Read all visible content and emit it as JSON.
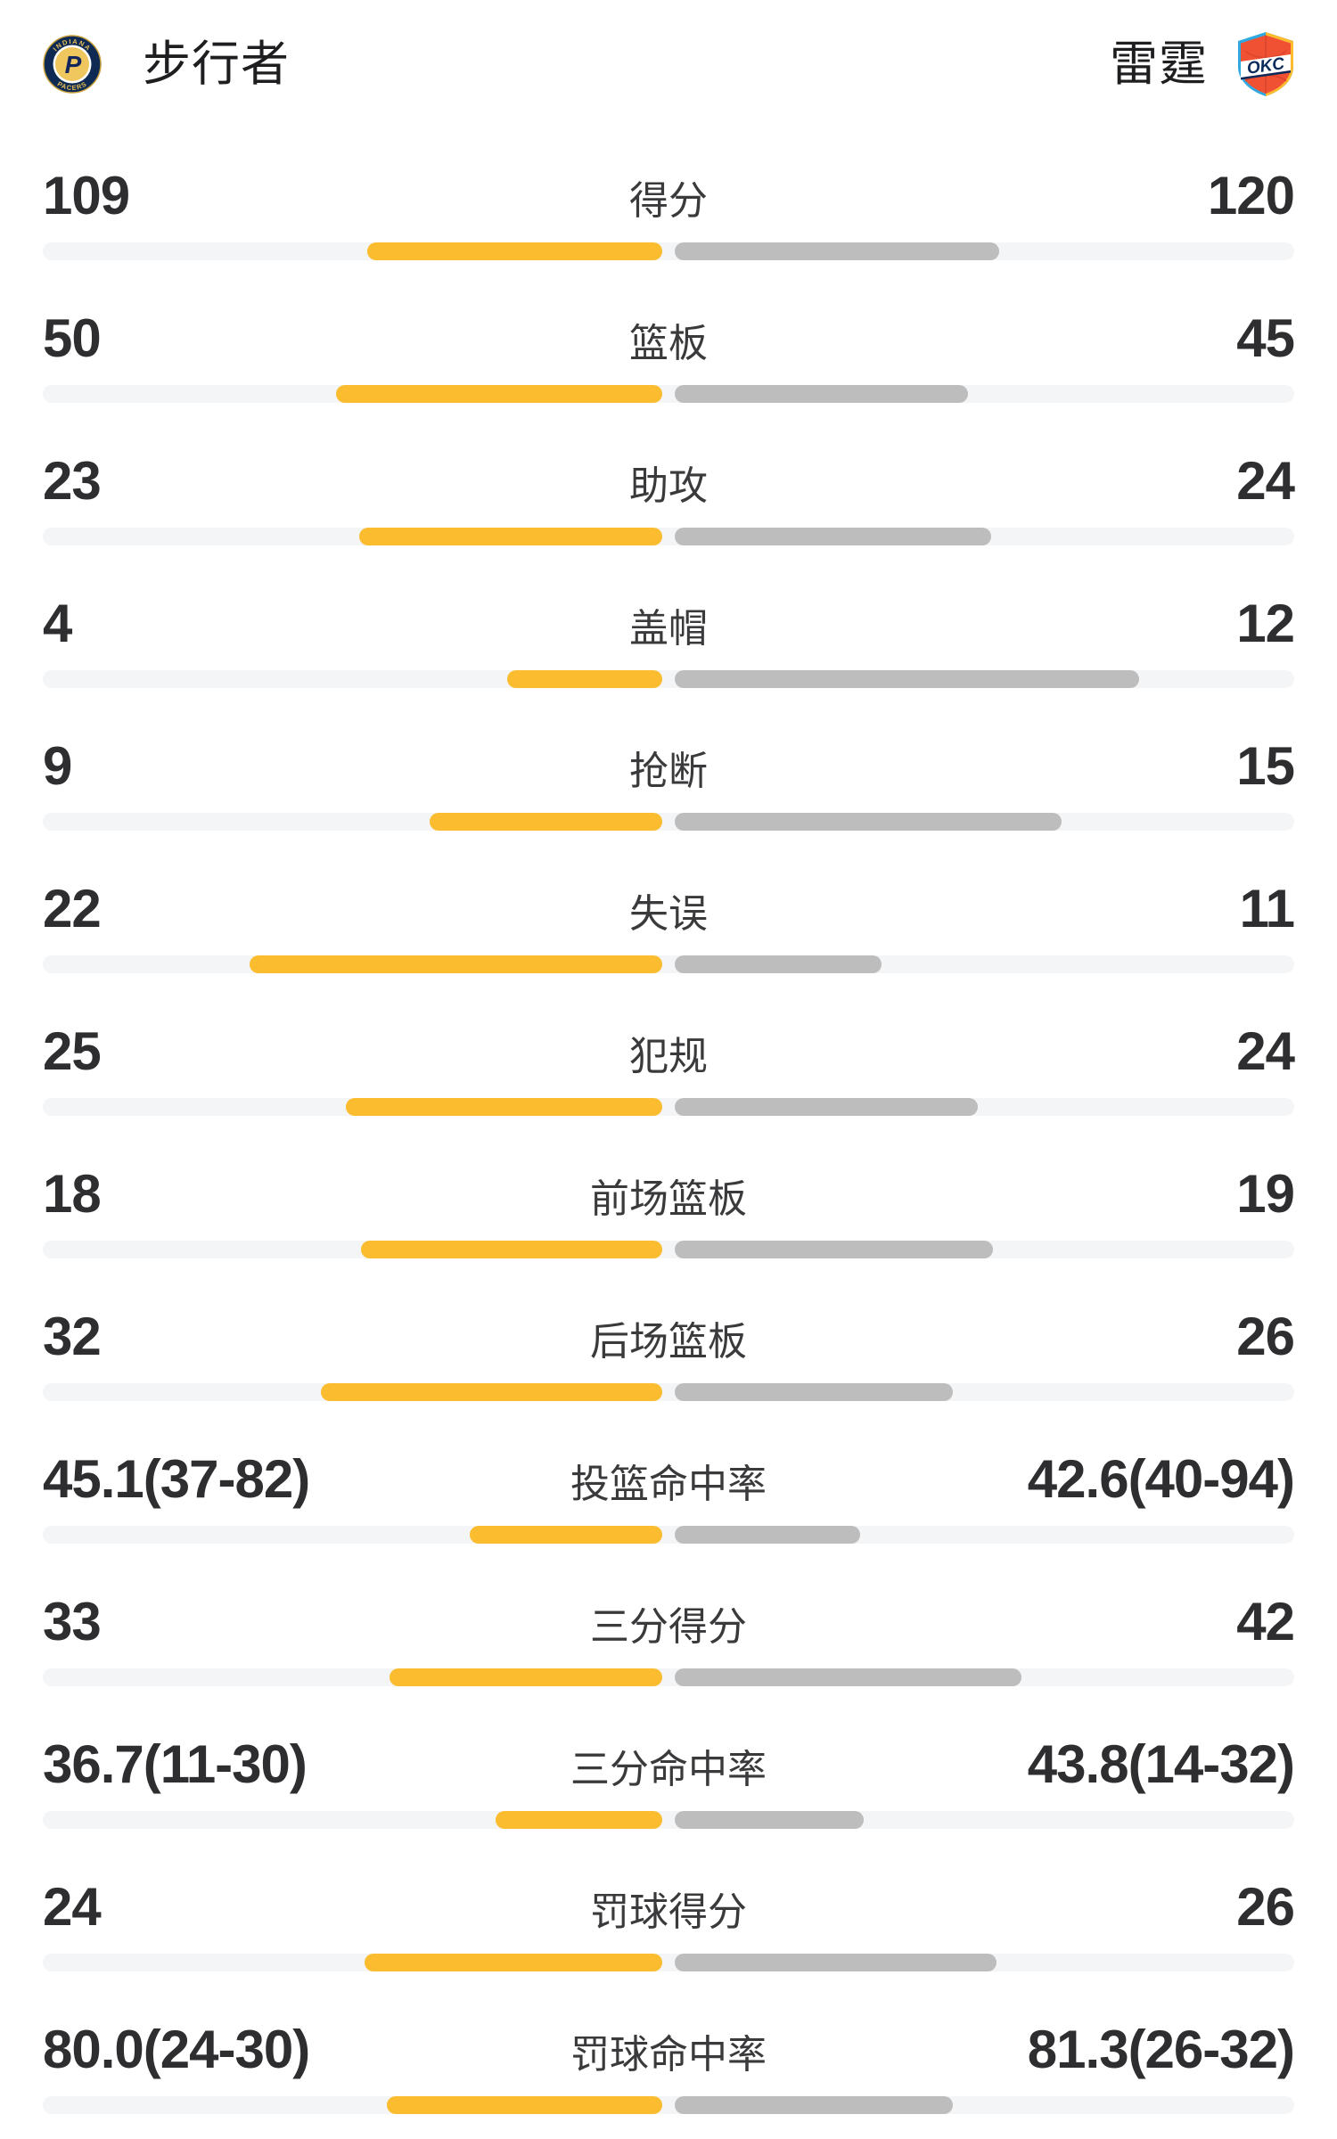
{
  "header": {
    "left_team": {
      "name": "步行者",
      "logo": "Indiana Pacers"
    },
    "right_team": {
      "name": "雷霆",
      "logo": "Oklahoma City Thunder"
    }
  },
  "colors": {
    "left_bar": "#fbbd2f",
    "right_bar": "#bdbdbd",
    "track": "#f4f5f7",
    "value_text": "#2e2e30",
    "label_text": "#3a3a3c",
    "pacers_navy": "#0e2a52",
    "pacers_gold": "#efc75e",
    "okc_orange": "#f05133",
    "okc_blue": "#2fa9e0",
    "okc_navy": "#0a2a5c"
  },
  "chart_data": {
    "type": "bar",
    "subtype": "head-to-head horizontal team comparison",
    "legend": [
      "步行者",
      "雷霆"
    ],
    "legend_position": "header",
    "grid": false,
    "categories": [
      "得分",
      "篮板",
      "助攻",
      "盖帽",
      "抢断",
      "失误",
      "犯规",
      "前场篮板",
      "后场篮板",
      "投篮命中率",
      "三分得分",
      "三分命中率",
      "罚球得分",
      "罚球命中率"
    ],
    "series": [
      {
        "name": "步行者",
        "values": [
          109,
          50,
          23,
          4,
          9,
          22,
          25,
          18,
          32,
          45.1,
          33,
          36.7,
          24,
          80.0
        ]
      },
      {
        "name": "雷霆",
        "values": [
          120,
          45,
          24,
          12,
          15,
          11,
          24,
          19,
          26,
          42.6,
          42,
          43.8,
          26,
          81.3
        ]
      }
    ],
    "rows": [
      {
        "label": "得分",
        "percent": false,
        "left": {
          "text": "109",
          "value": 109
        },
        "right": {
          "text": "120",
          "value": 120
        }
      },
      {
        "label": "篮板",
        "percent": false,
        "left": {
          "text": "50",
          "value": 50
        },
        "right": {
          "text": "45",
          "value": 45
        }
      },
      {
        "label": "助攻",
        "percent": false,
        "left": {
          "text": "23",
          "value": 23
        },
        "right": {
          "text": "24",
          "value": 24
        }
      },
      {
        "label": "盖帽",
        "percent": false,
        "left": {
          "text": "4",
          "value": 4
        },
        "right": {
          "text": "12",
          "value": 12
        }
      },
      {
        "label": "抢断",
        "percent": false,
        "left": {
          "text": "9",
          "value": 9
        },
        "right": {
          "text": "15",
          "value": 15
        }
      },
      {
        "label": "失误",
        "percent": false,
        "left": {
          "text": "22",
          "value": 22
        },
        "right": {
          "text": "11",
          "value": 11
        }
      },
      {
        "label": "犯规",
        "percent": false,
        "left": {
          "text": "25",
          "value": 25
        },
        "right": {
          "text": "24",
          "value": 24
        }
      },
      {
        "label": "前场篮板",
        "percent": false,
        "left": {
          "text": "18",
          "value": 18
        },
        "right": {
          "text": "19",
          "value": 19
        }
      },
      {
        "label": "后场篮板",
        "percent": false,
        "left": {
          "text": "32",
          "value": 32
        },
        "right": {
          "text": "26",
          "value": 26
        }
      },
      {
        "label": "投篮命中率",
        "percent": true,
        "left": {
          "text": "45.1(37-82)",
          "value": 45.1
        },
        "right": {
          "text": "42.6(40-94)",
          "value": 42.6
        }
      },
      {
        "label": "三分得分",
        "percent": false,
        "left": {
          "text": "33",
          "value": 33
        },
        "right": {
          "text": "42",
          "value": 42
        }
      },
      {
        "label": "三分命中率",
        "percent": true,
        "left": {
          "text": "36.7(11-30)",
          "value": 36.7
        },
        "right": {
          "text": "43.8(14-32)",
          "value": 43.8
        }
      },
      {
        "label": "罚球得分",
        "percent": false,
        "left": {
          "text": "24",
          "value": 24
        },
        "right": {
          "text": "26",
          "value": 26
        }
      },
      {
        "label": "罚球命中率",
        "percent": true,
        "left": {
          "text": "80.0(24-30)",
          "value": 80.0
        },
        "right": {
          "text": "81.3(26-32)",
          "value": 81.3
        }
      }
    ]
  }
}
